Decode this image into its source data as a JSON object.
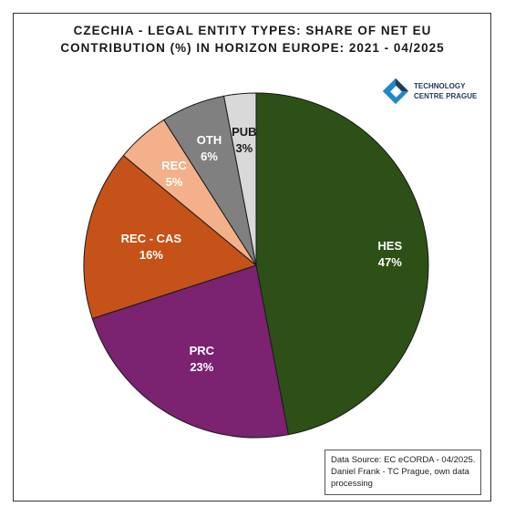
{
  "title_lines": [
    "CZECHIA - LEGAL ENTITY TYPES: SHARE OF NET EU",
    "CONTRIBUTION (%) IN HORIZON EUROPE: 2021  - 04/2025"
  ],
  "logo": {
    "line1": "TECHNOLOGY",
    "line2": "CENTRE PRAGUE",
    "icon": "tc-prague-logo"
  },
  "source_lines": [
    "Data Source: EC eCORDA - 04/2025.",
    "Daniel Frank - TC Prague, own data",
    "processing"
  ],
  "chart_data": {
    "type": "pie",
    "start_angle_deg": 0,
    "direction": "clockwise",
    "slices": [
      {
        "label": "HES",
        "value": 47,
        "value_label": "47%",
        "color": "#2d5016",
        "text_color": "#ffffff"
      },
      {
        "label": "PRC",
        "value": 23,
        "value_label": "23%",
        "color": "#7b2271",
        "text_color": "#ffffff"
      },
      {
        "label": "REC - CAS",
        "value": 16,
        "value_label": "16%",
        "color": "#c55218",
        "text_color": "#ffffff"
      },
      {
        "label": "REC",
        "value": 5,
        "value_label": "5%",
        "color": "#f4b08a",
        "text_color": "#ffffff"
      },
      {
        "label": "OTH",
        "value": 6,
        "value_label": "6%",
        "color": "#808080",
        "text_color": "#ffffff"
      },
      {
        "label": "PUB",
        "value": 3,
        "value_label": "3%",
        "color": "#d9d9d9",
        "text_color": "#1a1a1a"
      }
    ]
  }
}
